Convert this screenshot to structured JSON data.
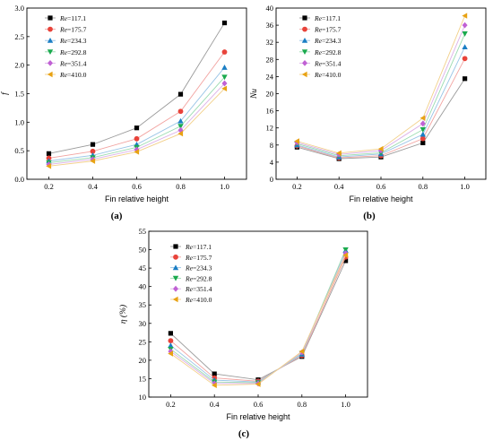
{
  "chart_data": [
    {
      "type": "line",
      "panel_label": "(a)",
      "xlabel": "Fin relative height",
      "ylabel": "f",
      "x": [
        0.2,
        0.4,
        0.6,
        0.8,
        1.0
      ],
      "xticks": [
        "0.2",
        "0.4",
        "0.6",
        "0.8",
        "1.0"
      ],
      "xlim": [
        0.1,
        1.1
      ],
      "ylim": [
        0.0,
        3.0
      ],
      "yticks": [
        "0.0",
        "0.5",
        "1.0",
        "1.5",
        "2.0",
        "2.5",
        "3.0"
      ],
      "legend_position": "top-left",
      "series": [
        {
          "name": "Re=117.1",
          "values": [
            0.45,
            0.61,
            0.9,
            1.49,
            2.74
          ]
        },
        {
          "name": "Re=175.7",
          "values": [
            0.37,
            0.49,
            0.71,
            1.19,
            2.23
          ]
        },
        {
          "name": "Re=234.3",
          "values": [
            0.32,
            0.42,
            0.61,
            1.02,
            1.96
          ]
        },
        {
          "name": "Re=292.8",
          "values": [
            0.29,
            0.38,
            0.56,
            0.93,
            1.79
          ]
        },
        {
          "name": "Re=351.4",
          "values": [
            0.26,
            0.35,
            0.52,
            0.86,
            1.68
          ]
        },
        {
          "name": "Re=410.0",
          "values": [
            0.23,
            0.32,
            0.48,
            0.8,
            1.59
          ]
        }
      ]
    },
    {
      "type": "line",
      "panel_label": "(b)",
      "xlabel": "Fin relative height",
      "ylabel": "Nu",
      "x": [
        0.2,
        0.4,
        0.6,
        0.8,
        1.0
      ],
      "xticks": [
        "0.2",
        "0.4",
        "0.6",
        "0.8",
        "1.0"
      ],
      "xlim": [
        0.1,
        1.1
      ],
      "ylim": [
        0,
        40
      ],
      "yticks": [
        "0",
        "4",
        "8",
        "12",
        "16",
        "20",
        "24",
        "28",
        "32",
        "36",
        "40"
      ],
      "legend_position": "top-left",
      "series": [
        {
          "name": "Re=117.1",
          "values": [
            7.5,
            4.8,
            5.2,
            8.5,
            23.5
          ]
        },
        {
          "name": "Re=175.7",
          "values": [
            7.8,
            5.0,
            5.5,
            9.5,
            28.2
          ]
        },
        {
          "name": "Re=234.3",
          "values": [
            8.0,
            5.2,
            5.9,
            10.5,
            30.9
          ]
        },
        {
          "name": "Re=292.8",
          "values": [
            8.3,
            5.5,
            6.2,
            11.6,
            34.0
          ]
        },
        {
          "name": "Re=351.4",
          "values": [
            8.6,
            5.8,
            6.7,
            13.0,
            36.0
          ]
        },
        {
          "name": "Re=410.0",
          "values": [
            8.9,
            6.1,
            7.1,
            14.3,
            38.2
          ]
        }
      ]
    },
    {
      "type": "line",
      "panel_label": "(c)",
      "xlabel": "Fin relative height",
      "ylabel": "η (%)",
      "x": [
        0.2,
        0.4,
        0.6,
        0.8,
        1.0
      ],
      "xticks": [
        "0.2",
        "0.4",
        "0.6",
        "0.8",
        "1.0"
      ],
      "xlim": [
        0.1,
        1.1
      ],
      "ylim": [
        10,
        55
      ],
      "yticks": [
        "10",
        "15",
        "20",
        "25",
        "30",
        "35",
        "40",
        "45",
        "50",
        "55"
      ],
      "legend_position": "top-left",
      "series": [
        {
          "name": "Re=117.1",
          "values": [
            27.3,
            16.3,
            14.7,
            21.0,
            47.0
          ]
        },
        {
          "name": "Re=175.7",
          "values": [
            25.3,
            15.2,
            14.3,
            21.3,
            48.0
          ]
        },
        {
          "name": "Re=234.3",
          "values": [
            24.0,
            14.6,
            14.1,
            21.6,
            49.8
          ]
        },
        {
          "name": "Re=292.8",
          "values": [
            23.0,
            14.1,
            13.9,
            21.9,
            50.0
          ]
        },
        {
          "name": "Re=351.4",
          "values": [
            22.4,
            13.7,
            13.7,
            22.1,
            49.0
          ]
        },
        {
          "name": "Re=410.0",
          "values": [
            21.8,
            13.2,
            13.5,
            22.4,
            48.5
          ]
        }
      ]
    }
  ],
  "styles": [
    {
      "color": "#000000",
      "line": "#9a9a9a",
      "marker": "square"
    },
    {
      "color": "#e8433a",
      "line": "#f2a3a0",
      "marker": "circle"
    },
    {
      "color": "#1a7ec4",
      "line": "#98c4e6",
      "marker": "triangle-up"
    },
    {
      "color": "#1aaa4e",
      "line": "#9adbb0",
      "marker": "triangle-down"
    },
    {
      "color": "#c061d4",
      "line": "#dcb0e8",
      "marker": "diamond"
    },
    {
      "color": "#e8a213",
      "line": "#f2d08a",
      "marker": "triangle-left"
    }
  ]
}
